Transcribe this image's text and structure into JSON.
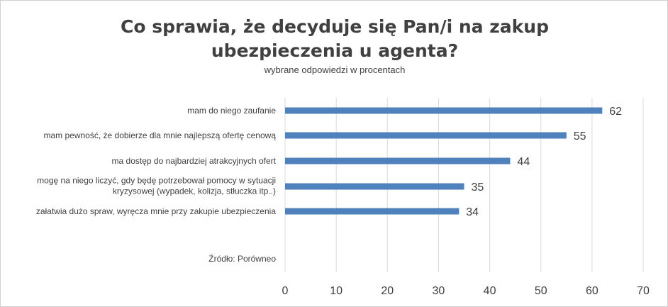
{
  "chart_data": {
    "type": "bar",
    "orientation": "horizontal",
    "title_line1": "Co sprawia, że decyduje się Pan/i na zakup",
    "title_line2": "ubezpieczenia u agenta?",
    "subtitle": "wybrane odpowiedzi w procentach",
    "categories": [
      [
        "mam do niego zaufanie"
      ],
      [
        "mam pewność, że dobierze dla mnie najlepszą ofertę cenową"
      ],
      [
        "ma dostęp do najbardziej atrakcyjnych ofert"
      ],
      [
        "mogę na niego liczyć, gdy będę potrzebował pomocy w sytuacji",
        "kryzysowej (wypadek, kolizja, stłuczka itp..)"
      ],
      [
        "załatwia dużo spraw, wyręcza mnie przy zakupie ubezpieczenia"
      ]
    ],
    "values": [
      62,
      55,
      44,
      35,
      34
    ],
    "source": "Źródło: Porówneo",
    "xlim": [
      0,
      70
    ],
    "xticks": [
      0,
      10,
      20,
      30,
      40,
      50,
      60,
      70
    ],
    "grid": "vertical",
    "bar_color": "#4f81bd",
    "grid_color": "#d9d9d9"
  }
}
